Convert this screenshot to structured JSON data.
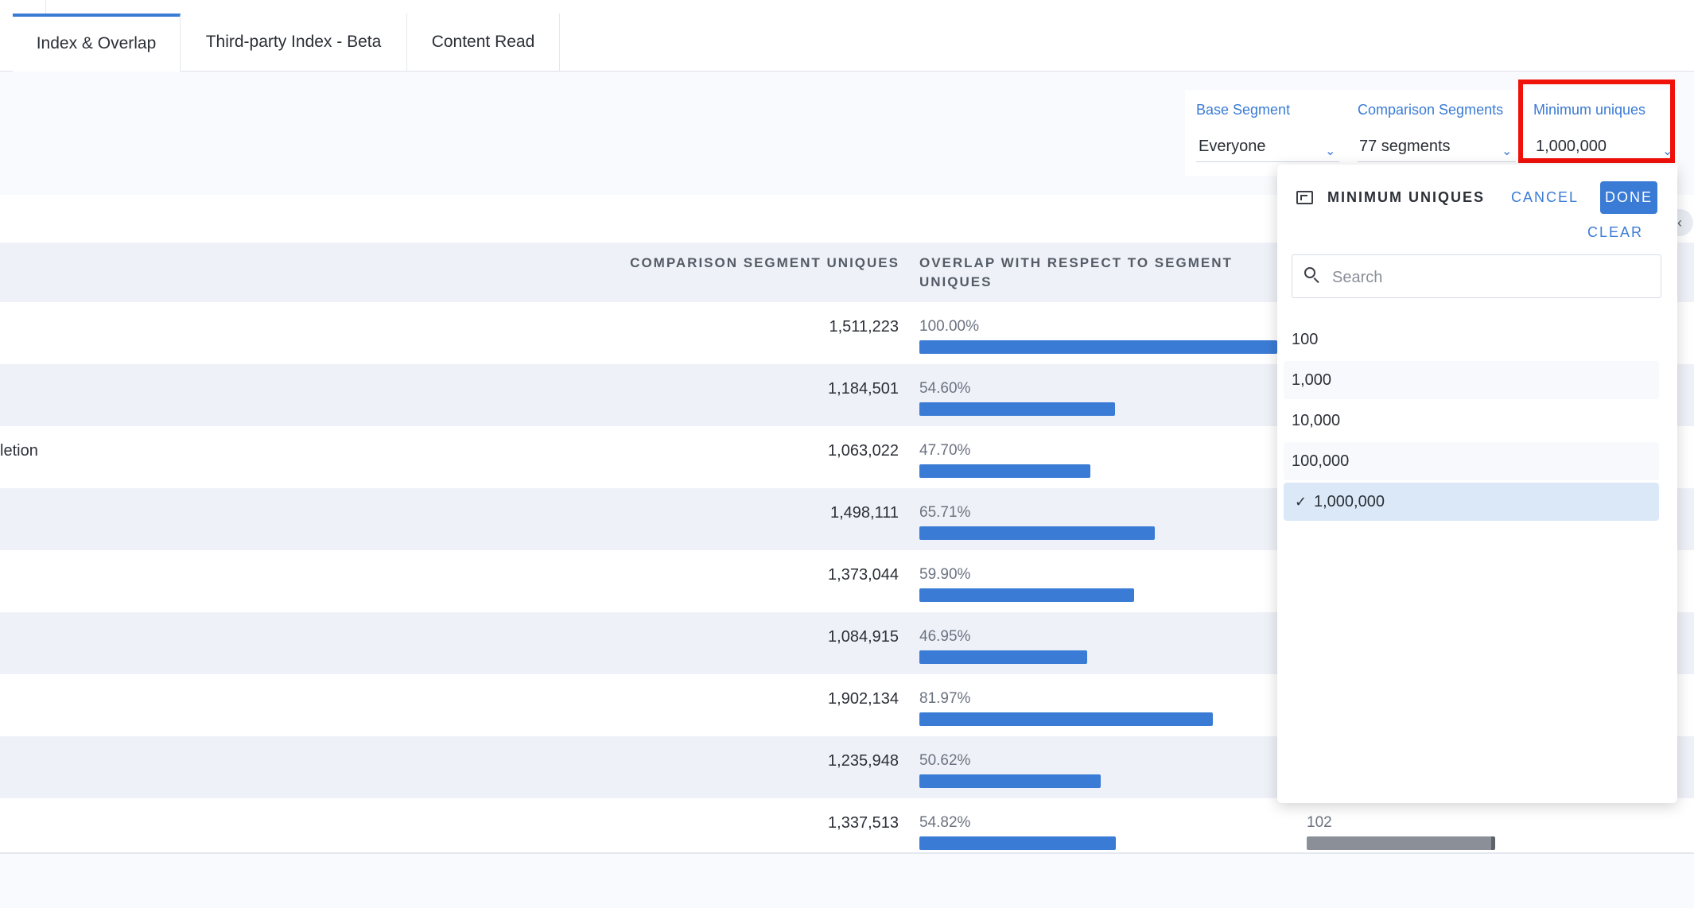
{
  "tabs": [
    {
      "label": "Index & Overlap"
    },
    {
      "label": "Third-party Index - Beta"
    },
    {
      "label": "Content Read"
    }
  ],
  "filters": {
    "base_segment": {
      "label": "Base Segment",
      "value": "Everyone"
    },
    "comparison_segments": {
      "label": "Comparison Segments",
      "value": "77 segments"
    },
    "minimum_uniques": {
      "label": "Minimum uniques",
      "value": "1,000,000"
    }
  },
  "table": {
    "headers": {
      "comparison_uniques": "COMPARISON SEGMENT UNIQUES",
      "overlap_line1": "OVERLAP WITH RESPECT TO SEGMENT",
      "overlap_line2": "UNIQUES"
    },
    "rows": [
      {
        "name": "",
        "uniques": "1,511,223",
        "overlap": "100.00%",
        "overlap_fraction": 1.0
      },
      {
        "name": "",
        "uniques": "1,184,501",
        "overlap": "54.60%",
        "overlap_fraction": 0.546
      },
      {
        "name": "letion",
        "uniques": "1,063,022",
        "overlap": "47.70%",
        "overlap_fraction": 0.477
      },
      {
        "name": "",
        "uniques": "1,498,111",
        "overlap": "65.71%",
        "overlap_fraction": 0.6571
      },
      {
        "name": "",
        "uniques": "1,373,044",
        "overlap": "59.90%",
        "overlap_fraction": 0.599
      },
      {
        "name": "",
        "uniques": "1,084,915",
        "overlap": "46.95%",
        "overlap_fraction": 0.4695
      },
      {
        "name": "",
        "uniques": "1,902,134",
        "overlap": "81.97%",
        "overlap_fraction": 0.8197
      },
      {
        "name": "",
        "uniques": "1,235,948",
        "overlap": "50.62%",
        "overlap_fraction": 0.5062
      },
      {
        "name": "",
        "uniques": "1,337,513",
        "overlap": "54.82%",
        "overlap_fraction": 0.5482,
        "index": "102",
        "index_fraction": 0.8
      }
    ]
  },
  "popover": {
    "title": "MINIMUM UNIQUES",
    "cancel_label": "CANCEL",
    "done_label": "DONE",
    "clear_label": "CLEAR",
    "search_placeholder": "Search",
    "options": [
      {
        "label": "100",
        "selected": false
      },
      {
        "label": "1,000",
        "selected": false
      },
      {
        "label": "10,000",
        "selected": false
      },
      {
        "label": "100,000",
        "selected": false
      },
      {
        "label": "1,000,000",
        "selected": true
      }
    ],
    "check_glyph": "✓"
  },
  "colors": {
    "accent": "#3a7bd5",
    "highlight": "#f0110a",
    "row_alt": "#eef2f8",
    "selected_option": "#dbe8f8"
  },
  "icons": {
    "chevron": "chevron-down-icon",
    "search": "search-icon",
    "popover_header": "expand-frame-icon"
  }
}
